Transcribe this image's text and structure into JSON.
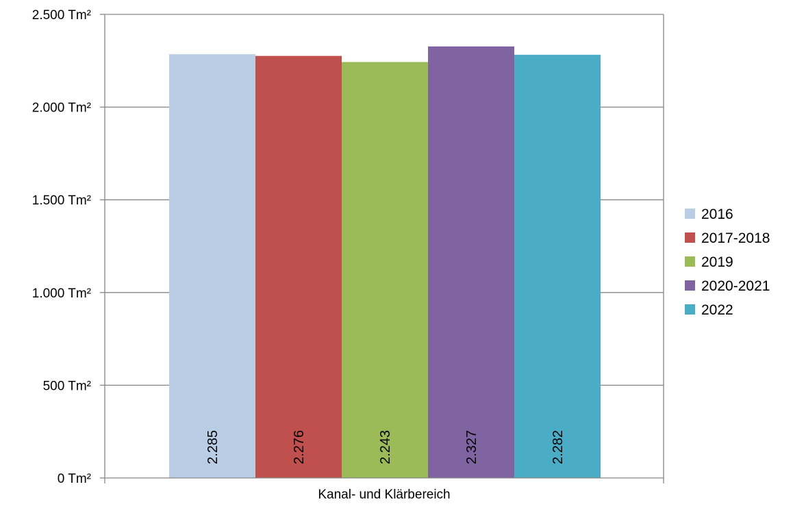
{
  "chart_data": {
    "type": "bar",
    "title": "",
    "xlabel": "",
    "ylabel": "",
    "categories": [
      "Kanal- und Klärbereich"
    ],
    "series": [
      {
        "name": "2016",
        "values": [
          2285
        ],
        "label": "2.285",
        "color": "#B9CDE5"
      },
      {
        "name": "2017-2018",
        "values": [
          2276
        ],
        "label": "2.276",
        "color": "#C0504D"
      },
      {
        "name": "2019",
        "values": [
          2243
        ],
        "label": "2.243",
        "color": "#9BBB59"
      },
      {
        "name": "2020-2021",
        "values": [
          2327
        ],
        "label": "2.327",
        "color": "#8064A2"
      },
      {
        "name": "2022",
        "values": [
          2282
        ],
        "label": "2.282",
        "color": "#4BACC6"
      }
    ],
    "ylim": [
      0,
      2500
    ],
    "yticks": [
      {
        "value": 0,
        "label": "0 Tm²"
      },
      {
        "value": 500,
        "label": "500 Tm²"
      },
      {
        "value": 1000,
        "label": "1.000 Tm²"
      },
      {
        "value": 1500,
        "label": "1.500 Tm²"
      },
      {
        "value": 2000,
        "label": "2.000 Tm²"
      },
      {
        "value": 2500,
        "label": "2.500 Tm²"
      }
    ],
    "grid": true,
    "legend_position": "right",
    "data_labels_rotated": true
  }
}
